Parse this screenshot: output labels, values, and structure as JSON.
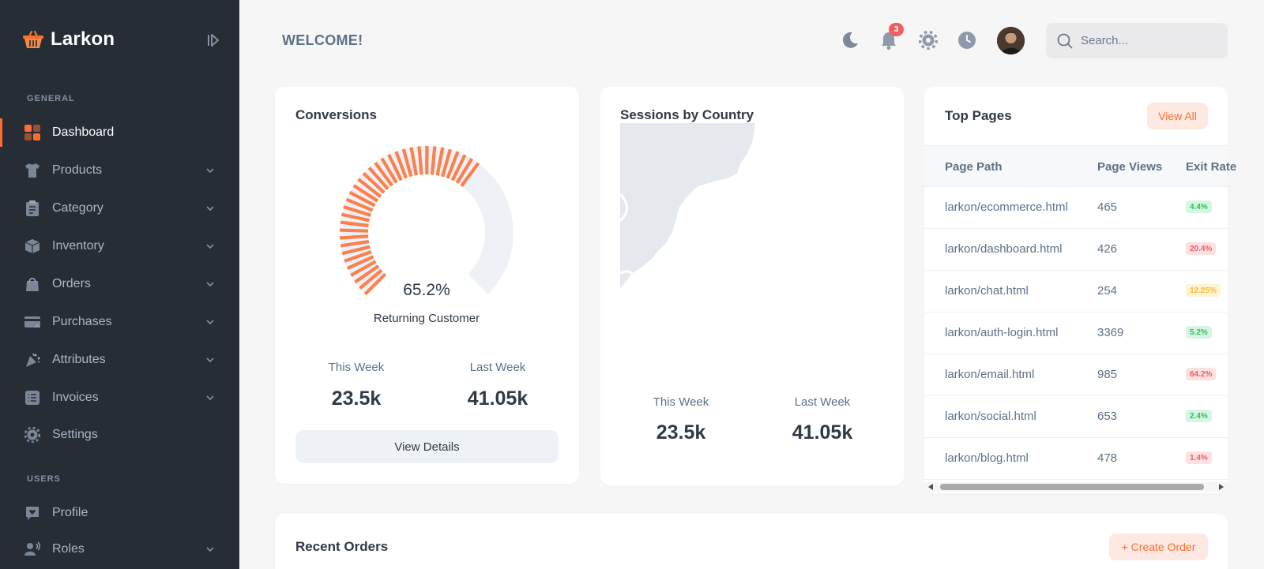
{
  "brand": {
    "name": "Larkon",
    "accent": "#ff6c2f",
    "sidebar_bg": "#262d34"
  },
  "sidebar": {
    "general_title": "GENERAL",
    "users_title": "USERS",
    "items": [
      {
        "label": "Dashboard",
        "icon": "dashboard-icon"
      },
      {
        "label": "Products",
        "icon": "tshirt-icon"
      },
      {
        "label": "Category",
        "icon": "clipboard-list-icon"
      },
      {
        "label": "Inventory",
        "icon": "box-icon"
      },
      {
        "label": "Orders",
        "icon": "shopping-bag-icon"
      },
      {
        "label": "Purchases",
        "icon": "card-transfer-icon"
      },
      {
        "label": "Attributes",
        "icon": "confetti-icon"
      },
      {
        "label": "Invoices",
        "icon": "list-icon"
      },
      {
        "label": "Settings",
        "icon": "gear-icon"
      },
      {
        "label": "Profile",
        "icon": "chat-heart-icon"
      },
      {
        "label": "Roles",
        "icon": "user-voice-icon"
      }
    ]
  },
  "topbar": {
    "welcome": "WELCOME!",
    "notification_count": "3",
    "search_placeholder": "Search..."
  },
  "conversions": {
    "title": "Conversions",
    "percent": "65.2%",
    "percent_value": 65.2,
    "caption": "Returning Customer",
    "this_week_label": "This Week",
    "this_week_value": "23.5k",
    "last_week_label": "Last Week",
    "last_week_value": "41.05k",
    "button": "View Details"
  },
  "sessions": {
    "title": "Sessions by Country",
    "this_week_label": "This Week",
    "this_week_value": "23.5k",
    "last_week_label": "Last Week",
    "last_week_value": "41.05k"
  },
  "top_pages": {
    "title": "Top Pages",
    "view_all": "View All",
    "columns": [
      "Page Path",
      "Page Views",
      "Exit Rate"
    ],
    "rows": [
      {
        "path": "larkon/ecommerce.html",
        "views": "465",
        "exit": "4.4%",
        "status": "green"
      },
      {
        "path": "larkon/dashboard.html",
        "views": "426",
        "exit": "20.4%",
        "status": "red"
      },
      {
        "path": "larkon/chat.html",
        "views": "254",
        "exit": "12.25%",
        "status": "yellow"
      },
      {
        "path": "larkon/auth-login.html",
        "views": "3369",
        "exit": "5.2%",
        "status": "green"
      },
      {
        "path": "larkon/email.html",
        "views": "985",
        "exit": "64.2%",
        "status": "red"
      },
      {
        "path": "larkon/social.html",
        "views": "653",
        "exit": "2.4%",
        "status": "green"
      },
      {
        "path": "larkon/blog.html",
        "views": "478",
        "exit": "1.4%",
        "status": "red"
      }
    ]
  },
  "recent_orders": {
    "title": "Recent Orders",
    "create_button": "+ Create Order"
  }
}
